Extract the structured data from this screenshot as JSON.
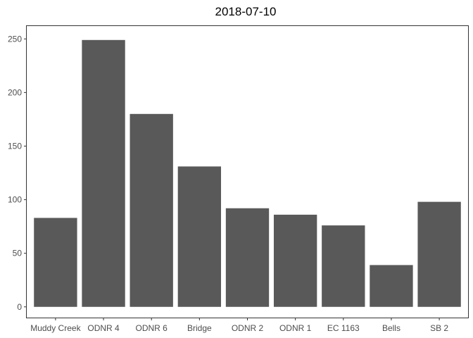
{
  "chart_data": {
    "type": "bar",
    "title": "2018-07-10",
    "xlabel": "",
    "ylabel": "",
    "categories": [
      "Muddy Creek",
      "ODNR 4",
      "ODNR 6",
      "Bridge",
      "ODNR 2",
      "ODNR 1",
      "EC 1163",
      "Bells",
      "SB 2"
    ],
    "values": [
      83,
      249,
      180,
      131,
      92,
      86,
      76,
      39,
      98
    ],
    "ylim": [
      -10,
      262
    ],
    "yticks": [
      0,
      50,
      100,
      150,
      200,
      250
    ],
    "grid": false,
    "bar_color": "#595959",
    "axis_color": "#333333",
    "tick_label_color": "#4d4d4d"
  }
}
